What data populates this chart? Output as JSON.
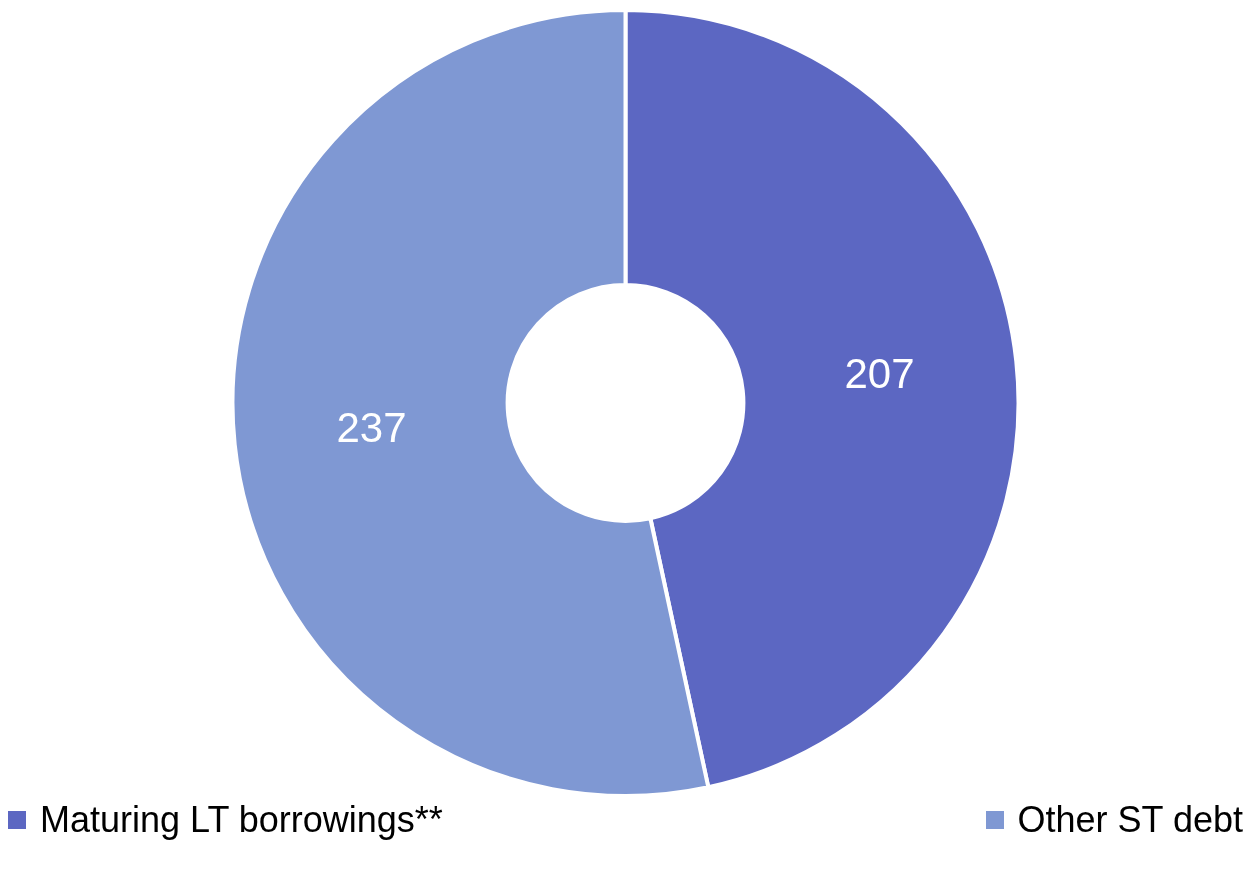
{
  "chart_data": {
    "type": "donut",
    "categories": [
      "Maturing LT borrowings**",
      "Other ST debt"
    ],
    "values": [
      207,
      237
    ],
    "colors": [
      "#5c67c2",
      "#7f98d3"
    ],
    "data_labels": true,
    "legend": "bottom"
  }
}
